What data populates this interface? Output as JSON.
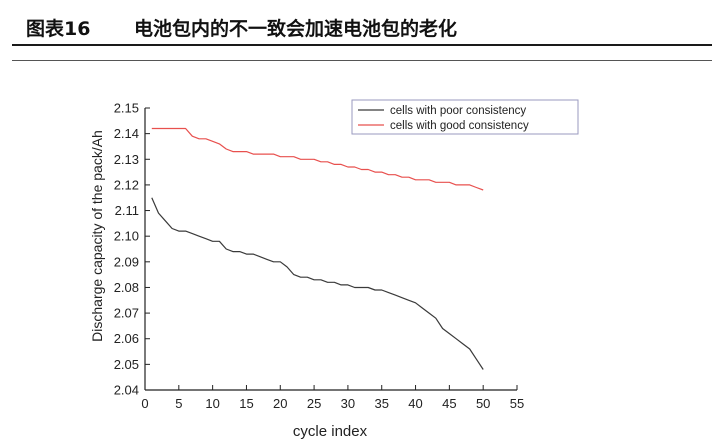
{
  "figure": {
    "label": "图表16",
    "title": "电池包内的不一致会加速电池包的老化"
  },
  "chart_data": {
    "type": "line",
    "title": "",
    "xlabel": "cycle index",
    "ylabel": "Discharge capacity of the pack/Ah",
    "xlim": [
      0,
      55
    ],
    "ylim": [
      2.04,
      2.15
    ],
    "xticks": [
      0,
      5,
      10,
      15,
      20,
      25,
      30,
      35,
      40,
      45,
      50,
      55
    ],
    "yticks": [
      "2.04",
      "2.05",
      "2.06",
      "2.07",
      "2.08",
      "2.09",
      "2.10",
      "2.11",
      "2.12",
      "2.13",
      "2.14",
      "2.15"
    ],
    "grid": false,
    "legend_position": "top-right",
    "series": [
      {
        "name": "cells with poor consistency",
        "color": "#3a3a3a",
        "x": [
          1,
          2,
          3,
          4,
          5,
          6,
          7,
          8,
          9,
          10,
          11,
          12,
          13,
          14,
          15,
          16,
          17,
          18,
          19,
          20,
          21,
          22,
          23,
          24,
          25,
          26,
          27,
          28,
          29,
          30,
          31,
          32,
          33,
          34,
          35,
          36,
          37,
          38,
          39,
          40,
          41,
          42,
          43,
          44,
          45,
          46,
          47,
          48,
          49,
          50
        ],
        "values": [
          2.115,
          2.109,
          2.106,
          2.103,
          2.102,
          2.102,
          2.101,
          2.1,
          2.099,
          2.098,
          2.098,
          2.095,
          2.094,
          2.094,
          2.093,
          2.093,
          2.092,
          2.091,
          2.09,
          2.09,
          2.088,
          2.085,
          2.084,
          2.084,
          2.083,
          2.083,
          2.082,
          2.082,
          2.081,
          2.081,
          2.08,
          2.08,
          2.08,
          2.079,
          2.079,
          2.078,
          2.077,
          2.076,
          2.075,
          2.074,
          2.072,
          2.07,
          2.068,
          2.064,
          2.062,
          2.06,
          2.058,
          2.056,
          2.052,
          2.048
        ]
      },
      {
        "name": "cells with good consistency",
        "color": "#e8504e",
        "x": [
          1,
          2,
          3,
          4,
          5,
          6,
          7,
          8,
          9,
          10,
          11,
          12,
          13,
          14,
          15,
          16,
          17,
          18,
          19,
          20,
          21,
          22,
          23,
          24,
          25,
          26,
          27,
          28,
          29,
          30,
          31,
          32,
          33,
          34,
          35,
          36,
          37,
          38,
          39,
          40,
          41,
          42,
          43,
          44,
          45,
          46,
          47,
          48,
          49,
          50
        ],
        "values": [
          2.142,
          2.142,
          2.142,
          2.142,
          2.142,
          2.142,
          2.139,
          2.138,
          2.138,
          2.137,
          2.136,
          2.134,
          2.133,
          2.133,
          2.133,
          2.132,
          2.132,
          2.132,
          2.132,
          2.131,
          2.131,
          2.131,
          2.13,
          2.13,
          2.13,
          2.129,
          2.129,
          2.128,
          2.128,
          2.127,
          2.127,
          2.126,
          2.126,
          2.125,
          2.125,
          2.124,
          2.124,
          2.123,
          2.123,
          2.122,
          2.122,
          2.122,
          2.121,
          2.121,
          2.121,
          2.12,
          2.12,
          2.12,
          2.119,
          2.118
        ]
      }
    ]
  }
}
